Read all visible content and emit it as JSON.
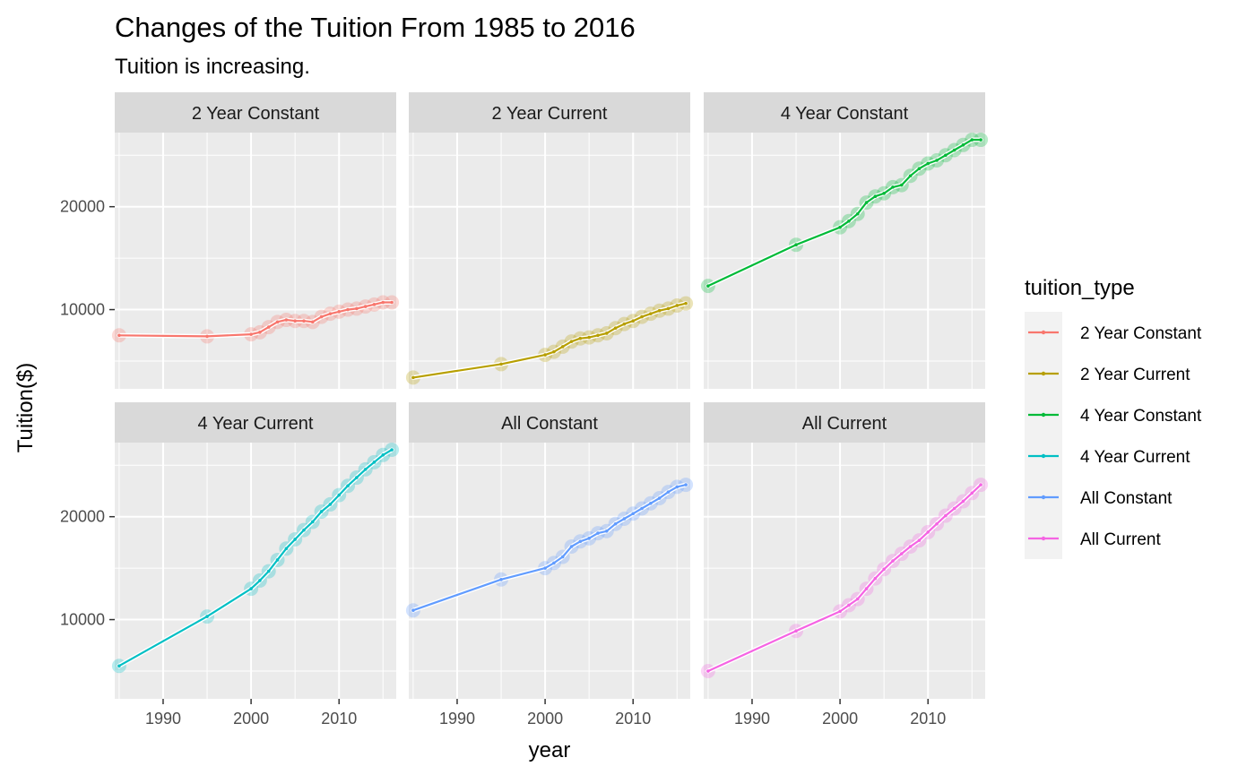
{
  "chart_data": {
    "type": "line",
    "title": "Changes of the Tuition From 1985 to 2016",
    "subtitle": "Tuition is increasing.",
    "xlabel": "year",
    "ylabel": "Tuition($)",
    "xlim": [
      1984.5,
      2016.5
    ],
    "ylim": [
      2300,
      27200
    ],
    "x_ticks": [
      1990,
      2000,
      2010
    ],
    "x_tick_labels": [
      "1990",
      "2000",
      "2010"
    ],
    "y_ticks": [
      10000,
      20000
    ],
    "y_tick_labels": [
      "10000",
      "20000"
    ],
    "facet_layout": {
      "rows": 2,
      "cols": 3,
      "shared_axes": true
    },
    "legend": {
      "title": "tuition_type",
      "position": "right"
    },
    "x": [
      1985,
      1995,
      2000,
      2001,
      2002,
      2003,
      2004,
      2005,
      2006,
      2007,
      2008,
      2009,
      2010,
      2011,
      2012,
      2013,
      2014,
      2015,
      2016
    ],
    "series": [
      {
        "name": "2 Year Constant",
        "color": "#F8766D",
        "values": [
          7500,
          7400,
          7600,
          7800,
          8300,
          8800,
          9000,
          8900,
          8900,
          8800,
          9300,
          9600,
          9800,
          10000,
          10100,
          10300,
          10500,
          10700,
          10700
        ]
      },
      {
        "name": "2 Year Current",
        "color": "#B79F00",
        "values": [
          3400,
          4700,
          5600,
          5900,
          6400,
          6900,
          7200,
          7300,
          7500,
          7700,
          8200,
          8600,
          8900,
          9300,
          9600,
          9900,
          10100,
          10400,
          10600
        ]
      },
      {
        "name": "4 Year Constant",
        "color": "#00BA38",
        "values": [
          12300,
          16300,
          18000,
          18600,
          19300,
          20400,
          21000,
          21300,
          21900,
          22100,
          23000,
          23700,
          24200,
          24500,
          25000,
          25500,
          26000,
          26500,
          26500
        ]
      },
      {
        "name": "4 Year Current",
        "color": "#00BFC4",
        "values": [
          5500,
          10300,
          13000,
          13800,
          14700,
          15800,
          16900,
          17800,
          18700,
          19500,
          20500,
          21200,
          22100,
          23000,
          23800,
          24600,
          25300,
          26000,
          26500
        ]
      },
      {
        "name": "All Constant",
        "color": "#619CFF",
        "values": [
          10900,
          13900,
          15000,
          15500,
          16100,
          17100,
          17600,
          17900,
          18400,
          18600,
          19300,
          19800,
          20300,
          20800,
          21300,
          21800,
          22400,
          22900,
          23100
        ]
      },
      {
        "name": "All Current",
        "color": "#F564E3",
        "values": [
          5000,
          8900,
          10800,
          11400,
          12000,
          13000,
          14000,
          14900,
          15700,
          16400,
          17100,
          17700,
          18500,
          19300,
          20100,
          20800,
          21500,
          22300,
          23100
        ]
      }
    ]
  }
}
